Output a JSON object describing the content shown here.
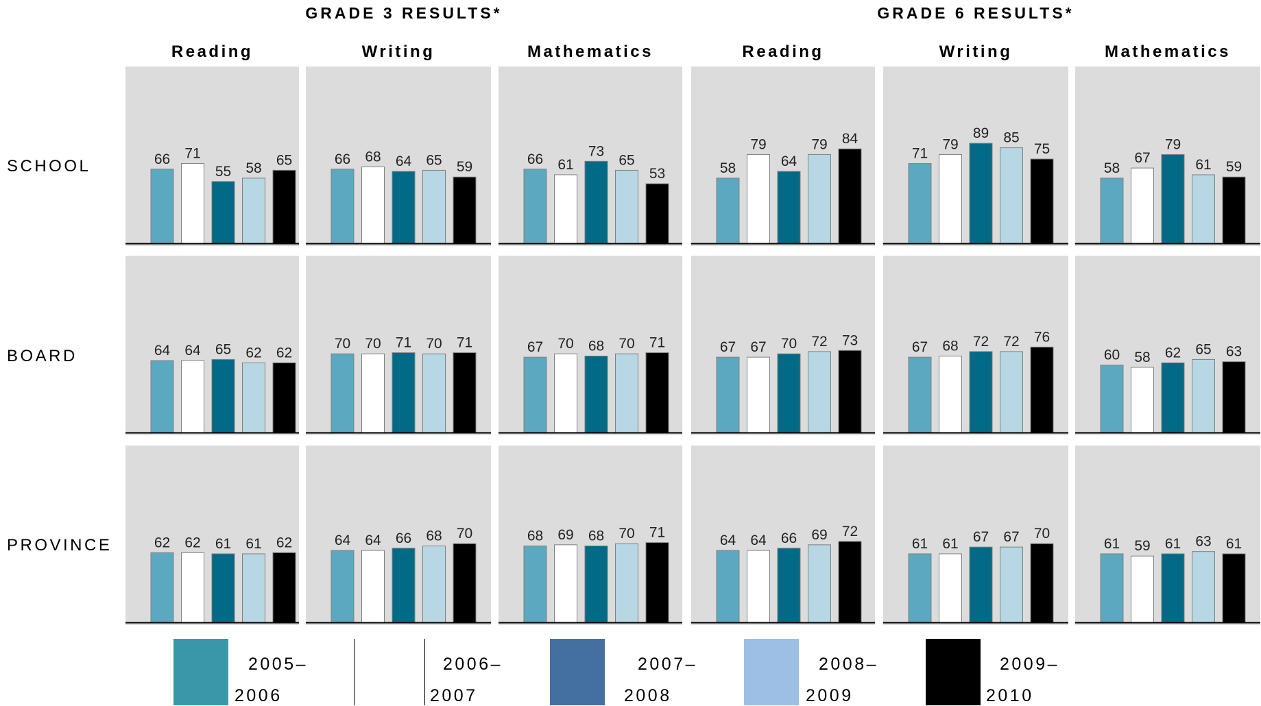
{
  "chart_data": {
    "type": "bar",
    "grade_titles": [
      "GRADE 3 RESULTS*",
      "GRADE 6 RESULTS*"
    ],
    "subjects": [
      "Reading",
      "Writing",
      "Mathematics",
      "Reading",
      "Writing",
      "Mathematics"
    ],
    "rows": [
      "SCHOOL",
      "BOARD",
      "PROVINCE"
    ],
    "series_names": [
      "2005–2006",
      "2006–2007",
      "2007–2008",
      "2008–2009",
      "2009–2010"
    ],
    "series_colors": [
      "#5ba8c1",
      "#ffffff",
      "#006a87",
      "#b6d7e3",
      "#000000"
    ],
    "legend_colors": [
      "#3a97aa",
      "#ffffff",
      "#4470a0",
      "#9dbfe6",
      "#000000"
    ],
    "legend_lines": [
      [
        "2005–",
        "2006"
      ],
      [
        "2006–",
        "2007"
      ],
      [
        "2007–",
        "2008"
      ],
      [
        "2008–",
        "2009"
      ],
      [
        "2009–",
        "2010"
      ]
    ],
    "ylim": [
      0,
      100
    ],
    "values": [
      [
        [
          66,
          71,
          55,
          58,
          65
        ],
        [
          66,
          68,
          64,
          65,
          59
        ],
        [
          66,
          61,
          73,
          65,
          53
        ],
        [
          58,
          79,
          64,
          79,
          84
        ],
        [
          71,
          79,
          89,
          85,
          75
        ],
        [
          58,
          67,
          79,
          61,
          59
        ]
      ],
      [
        [
          64,
          64,
          65,
          62,
          62
        ],
        [
          70,
          70,
          71,
          70,
          71
        ],
        [
          67,
          70,
          68,
          70,
          71
        ],
        [
          67,
          67,
          70,
          72,
          73
        ],
        [
          67,
          68,
          72,
          72,
          76
        ],
        [
          60,
          58,
          62,
          65,
          63
        ]
      ],
      [
        [
          62,
          62,
          61,
          61,
          62
        ],
        [
          64,
          64,
          66,
          68,
          70
        ],
        [
          68,
          69,
          68,
          70,
          71
        ],
        [
          64,
          64,
          66,
          69,
          72
        ],
        [
          61,
          61,
          67,
          67,
          70
        ],
        [
          61,
          59,
          61,
          63,
          61
        ]
      ]
    ]
  }
}
